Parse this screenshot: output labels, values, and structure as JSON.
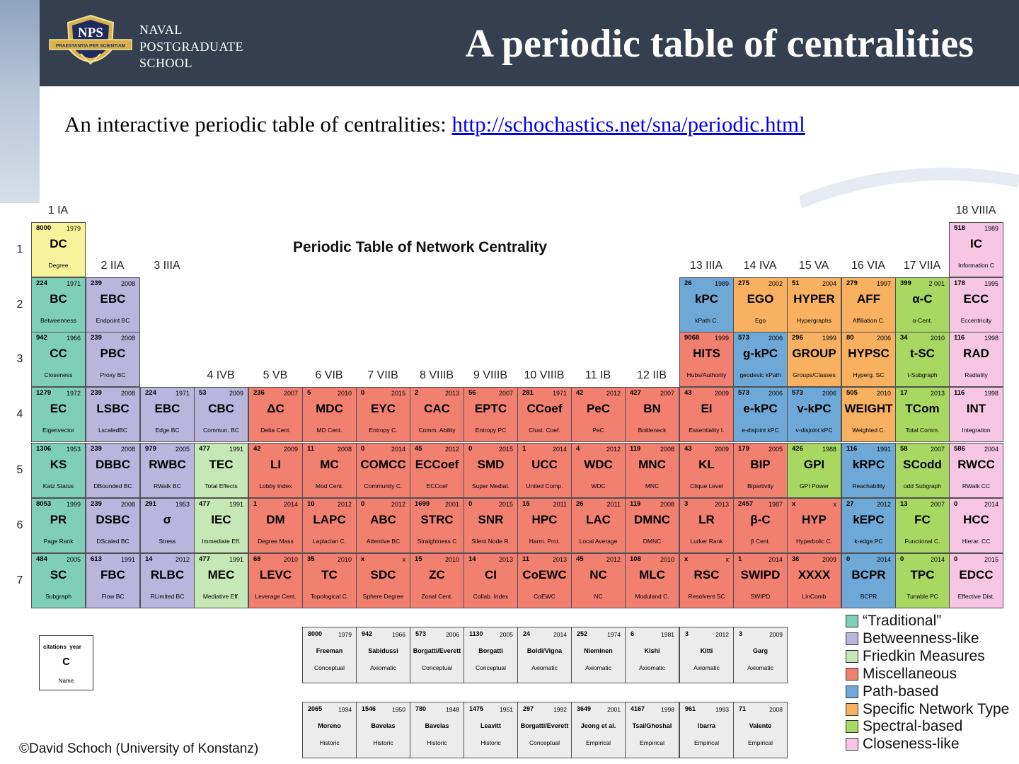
{
  "header": {
    "school_lines": [
      "NAVAL",
      "POSTGRADUATE",
      "SCHOOL"
    ],
    "seal_text": "NPS",
    "seal_motto": "PRAESTANTIA PER SCIENTIAM",
    "title": "A periodic table of centralities"
  },
  "intro": {
    "text": "An interactive periodic table of centralities: ",
    "link": "http://schochastics.net/sna/periodic.html"
  },
  "table": {
    "title": "Periodic Table of Network Centrality",
    "group_labels": [
      "1 IA",
      "2 IIA",
      "3 IIIA",
      "4 IVB",
      "5 VB",
      "6 VIB",
      "7 VIIB",
      "8 VIIIB",
      "9 VIIIB",
      "10 VIIIB",
      "11 IB",
      "12 IIB",
      "13 IIIA",
      "14 IVA",
      "15 VA",
      "16 VIA",
      "17 VIIA",
      "18 VIIIA"
    ],
    "period_labels": [
      "1",
      "2",
      "3",
      "4",
      "5",
      "6",
      "7"
    ],
    "colors": {
      "T": "#7fcfb8",
      "B": "#b9b5dd",
      "F": "#c5e8b6",
      "M": "#f28070",
      "P": "#6ea8d6",
      "S": "#f7b160",
      "SP": "#a8d862",
      "C": "#f6c6e2"
    },
    "cells": [
      {
        "col": 1,
        "row": 1,
        "cit": "8000",
        "yr": "1979",
        "sym": "DC",
        "name": "Degree",
        "cat": "Y"
      },
      {
        "col": 18,
        "row": 1,
        "cit": "518",
        "yr": "1989",
        "sym": "IC",
        "name": "Information C",
        "cat": "C"
      },
      {
        "col": 1,
        "row": 2,
        "cit": "224",
        "yr": "1971",
        "sym": "BC",
        "name": "Betweenness",
        "cat": "T"
      },
      {
        "col": 2,
        "row": 2,
        "cit": "239",
        "yr": "2008",
        "sym": "EBC",
        "name": "Endpoint BC",
        "cat": "B"
      },
      {
        "col": 13,
        "row": 2,
        "cit": "26",
        "yr": "1989",
        "sym": "kPC",
        "name": "kPath C.",
        "cat": "P"
      },
      {
        "col": 14,
        "row": 2,
        "cit": "275",
        "yr": "2002",
        "sym": "EGO",
        "name": "Ego",
        "cat": "S"
      },
      {
        "col": 15,
        "row": 2,
        "cit": "51",
        "yr": "2004",
        "sym": "HYPER",
        "name": "Hypergraphs",
        "cat": "S"
      },
      {
        "col": 16,
        "row": 2,
        "cit": "279",
        "yr": "1997",
        "sym": "AFF",
        "name": "Affiliation C.",
        "cat": "S"
      },
      {
        "col": 17,
        "row": 2,
        "cit": "399",
        "yr": "2 001",
        "sym": "α-C",
        "name": "α-Cent.",
        "cat": "SP"
      },
      {
        "col": 18,
        "row": 2,
        "cit": "178",
        "yr": "1995",
        "sym": "ECC",
        "name": "Eccentricity",
        "cat": "C"
      },
      {
        "col": 1,
        "row": 3,
        "cit": "942",
        "yr": "1966",
        "sym": "CC",
        "name": "Closeness",
        "cat": "T"
      },
      {
        "col": 2,
        "row": 3,
        "cit": "239",
        "yr": "2008",
        "sym": "PBC",
        "name": "Proxy BC",
        "cat": "B"
      },
      {
        "col": 13,
        "row": 3,
        "cit": "9068",
        "yr": "1999",
        "sym": "HITS",
        "name": "Hubs/Authority",
        "cat": "M"
      },
      {
        "col": 14,
        "row": 3,
        "cit": "573",
        "yr": "2006",
        "sym": "g-kPC",
        "name": "geodesic kPath",
        "cat": "P"
      },
      {
        "col": 15,
        "row": 3,
        "cit": "296",
        "yr": "1999",
        "sym": "GROUP",
        "name": "Groups/Classes",
        "cat": "S"
      },
      {
        "col": 16,
        "row": 3,
        "cit": "80",
        "yr": "2006",
        "sym": "HYPSC",
        "name": "Hyperg. SC",
        "cat": "S"
      },
      {
        "col": 17,
        "row": 3,
        "cit": "34",
        "yr": "2010",
        "sym": "t-SC",
        "name": "t-Subgraph",
        "cat": "SP"
      },
      {
        "col": 18,
        "row": 3,
        "cit": "116",
        "yr": "1998",
        "sym": "RAD",
        "name": "Radiality",
        "cat": "C"
      },
      {
        "col": 1,
        "row": 4,
        "cit": "1279",
        "yr": "1972",
        "sym": "EC",
        "name": "Eigenvector",
        "cat": "T"
      },
      {
        "col": 2,
        "row": 4,
        "cit": "239",
        "yr": "2008",
        "sym": "LSBC",
        "name": "LscaledBC",
        "cat": "B"
      },
      {
        "col": 3,
        "row": 4,
        "cit": "224",
        "yr": "1971",
        "sym": "EBC",
        "name": "Edge BC",
        "cat": "B"
      },
      {
        "col": 4,
        "row": 4,
        "cit": "53",
        "yr": "2009",
        "sym": "CBC",
        "name": "Commun. BC",
        "cat": "B"
      },
      {
        "col": 5,
        "row": 4,
        "cit": "236",
        "yr": "2007",
        "sym": "ΔC",
        "name": "Delta Cent.",
        "cat": "M"
      },
      {
        "col": 6,
        "row": 4,
        "cit": "5",
        "yr": "2010",
        "sym": "MDC",
        "name": "MD Cent.",
        "cat": "M"
      },
      {
        "col": 7,
        "row": 4,
        "cit": "0",
        "yr": "2015",
        "sym": "EYC",
        "name": "Entropy C.",
        "cat": "M"
      },
      {
        "col": 8,
        "row": 4,
        "cit": "2",
        "yr": "2013",
        "sym": "CAC",
        "name": "Comm. Ability",
        "cat": "M"
      },
      {
        "col": 9,
        "row": 4,
        "cit": "56",
        "yr": "2007",
        "sym": "EPTC",
        "name": "Entropy PC",
        "cat": "M"
      },
      {
        "col": 10,
        "row": 4,
        "cit": "281",
        "yr": "1971",
        "sym": "CCoef",
        "name": "Clust. Coef.",
        "cat": "M"
      },
      {
        "col": 11,
        "row": 4,
        "cit": "42",
        "yr": "2012",
        "sym": "PeC",
        "name": "PeC",
        "cat": "M"
      },
      {
        "col": 12,
        "row": 4,
        "cit": "427",
        "yr": "2007",
        "sym": "BN",
        "name": "Bottleneck",
        "cat": "M"
      },
      {
        "col": 13,
        "row": 4,
        "cit": "43",
        "yr": "2009",
        "sym": "EI",
        "name": "Essentiality I.",
        "cat": "M"
      },
      {
        "col": 14,
        "row": 4,
        "cit": "573",
        "yr": "2006",
        "sym": "e-kPC",
        "name": "e-disjoint kPC",
        "cat": "P"
      },
      {
        "col": 15,
        "row": 4,
        "cit": "573",
        "yr": "2006",
        "sym": "v-kPC",
        "name": "v-disjoint kPC",
        "cat": "P"
      },
      {
        "col": 16,
        "row": 4,
        "cit": "505",
        "yr": "2010",
        "sym": "WEIGHT",
        "name": "Weighted C.",
        "cat": "S"
      },
      {
        "col": 17,
        "row": 4,
        "cit": "17",
        "yr": "2013",
        "sym": "TCom",
        "name": "Total Comm.",
        "cat": "SP"
      },
      {
        "col": 18,
        "row": 4,
        "cit": "116",
        "yr": "1998",
        "sym": "INT",
        "name": "Integration",
        "cat": "C"
      },
      {
        "col": 1,
        "row": 5,
        "cit": "1306",
        "yr": "1953",
        "sym": "KS",
        "name": "Katz Status",
        "cat": "T"
      },
      {
        "col": 2,
        "row": 5,
        "cit": "239",
        "yr": "2008",
        "sym": "DBBC",
        "name": "DBounded BC",
        "cat": "B"
      },
      {
        "col": 3,
        "row": 5,
        "cit": "979",
        "yr": "2005",
        "sym": "RWBC",
        "name": "RWalk BC",
        "cat": "B"
      },
      {
        "col": 4,
        "row": 5,
        "cit": "477",
        "yr": "1991",
        "sym": "TEC",
        "name": "Total Effects",
        "cat": "F"
      },
      {
        "col": 5,
        "row": 5,
        "cit": "42",
        "yr": "2009",
        "sym": "LI",
        "name": "Lobby Index",
        "cat": "M"
      },
      {
        "col": 6,
        "row": 5,
        "cit": "11",
        "yr": "2008",
        "sym": "MC",
        "name": "Mod Cent.",
        "cat": "M"
      },
      {
        "col": 7,
        "row": 5,
        "cit": "0",
        "yr": "2014",
        "sym": "COMCC",
        "name": "Community C.",
        "cat": "M"
      },
      {
        "col": 8,
        "row": 5,
        "cit": "45",
        "yr": "2012",
        "sym": "ECCoef",
        "name": "ECCoef",
        "cat": "M"
      },
      {
        "col": 9,
        "row": 5,
        "cit": "0",
        "yr": "2015",
        "sym": "SMD",
        "name": "Super Mediat.",
        "cat": "M"
      },
      {
        "col": 10,
        "row": 5,
        "cit": "1",
        "yr": "2014",
        "sym": "UCC",
        "name": "United Comp.",
        "cat": "M"
      },
      {
        "col": 11,
        "row": 5,
        "cit": "4",
        "yr": "2012",
        "sym": "WDC",
        "name": "WDC",
        "cat": "M"
      },
      {
        "col": 12,
        "row": 5,
        "cit": "119",
        "yr": "2008",
        "sym": "MNC",
        "name": "MNC",
        "cat": "M"
      },
      {
        "col": 13,
        "row": 5,
        "cit": "43",
        "yr": "2009",
        "sym": "KL",
        "name": "Clique Level",
        "cat": "M"
      },
      {
        "col": 14,
        "row": 5,
        "cit": "179",
        "yr": "2005",
        "sym": "BIP",
        "name": "Bipartivity",
        "cat": "M"
      },
      {
        "col": 15,
        "row": 5,
        "cit": "426",
        "yr": "1988",
        "sym": "GPI",
        "name": "GPI Power",
        "cat": "SP"
      },
      {
        "col": 16,
        "row": 5,
        "cit": "116",
        "yr": "1991",
        "sym": "kRPC",
        "name": "Reachability",
        "cat": "P"
      },
      {
        "col": 17,
        "row": 5,
        "cit": "58",
        "yr": "2007",
        "sym": "SCodd",
        "name": "odd Subgraph",
        "cat": "SP"
      },
      {
        "col": 18,
        "row": 5,
        "cit": "586",
        "yr": "2004",
        "sym": "RWCC",
        "name": "RWalk CC",
        "cat": "C"
      },
      {
        "col": 1,
        "row": 6,
        "cit": "8053",
        "yr": "1999",
        "sym": "PR",
        "name": "Page Rank",
        "cat": "T"
      },
      {
        "col": 2,
        "row": 6,
        "cit": "239",
        "yr": "2008",
        "sym": "DSBC",
        "name": "DScaled BC",
        "cat": "B"
      },
      {
        "col": 3,
        "row": 6,
        "cit": "291",
        "yr": "1953",
        "sym": "σ",
        "name": "Stress",
        "cat": "B"
      },
      {
        "col": 4,
        "row": 6,
        "cit": "477",
        "yr": "1991",
        "sym": "IEC",
        "name": "Immediate Eff.",
        "cat": "F"
      },
      {
        "col": 5,
        "row": 6,
        "cit": "1",
        "yr": "2014",
        "sym": "DM",
        "name": "Degree Mass",
        "cat": "M"
      },
      {
        "col": 6,
        "row": 6,
        "cit": "10",
        "yr": "2012",
        "sym": "LAPC",
        "name": "Laplacian C.",
        "cat": "M"
      },
      {
        "col": 7,
        "row": 6,
        "cit": "0",
        "yr": "2012",
        "sym": "ABC",
        "name": "Attentive BC",
        "cat": "M"
      },
      {
        "col": 8,
        "row": 6,
        "cit": "1699",
        "yr": "2001",
        "sym": "STRC",
        "name": "Straightness C",
        "cat": "M"
      },
      {
        "col": 9,
        "row": 6,
        "cit": "0",
        "yr": "2015",
        "sym": "SNR",
        "name": "Silent Node R.",
        "cat": "M"
      },
      {
        "col": 10,
        "row": 6,
        "cit": "15",
        "yr": "2011",
        "sym": "HPC",
        "name": "Harm. Prot.",
        "cat": "M"
      },
      {
        "col": 11,
        "row": 6,
        "cit": "26",
        "yr": "2011",
        "sym": "LAC",
        "name": "Local Average",
        "cat": "M"
      },
      {
        "col": 12,
        "row": 6,
        "cit": "119",
        "yr": "2008",
        "sym": "DMNC",
        "name": "DMNC",
        "cat": "M"
      },
      {
        "col": 13,
        "row": 6,
        "cit": "3",
        "yr": "2013",
        "sym": "LR",
        "name": "Lurker Rank",
        "cat": "M"
      },
      {
        "col": 14,
        "row": 6,
        "cit": "2457",
        "yr": "1987",
        "sym": "β-C",
        "name": "β Cent.",
        "cat": "M"
      },
      {
        "col": 15,
        "row": 6,
        "cit": "x",
        "yr": "x",
        "sym": "HYP",
        "name": "Hyperbolic C.",
        "cat": "M"
      },
      {
        "col": 16,
        "row": 6,
        "cit": "27",
        "yr": "2012",
        "sym": "kEPC",
        "name": "k-edge PC",
        "cat": "P"
      },
      {
        "col": 17,
        "row": 6,
        "cit": "13",
        "yr": "2007",
        "sym": "FC",
        "name": "Functional C.",
        "cat": "SP"
      },
      {
        "col": 18,
        "row": 6,
        "cit": "0",
        "yr": "2014",
        "sym": "HCC",
        "name": "Hierar. CC",
        "cat": "C"
      },
      {
        "col": 1,
        "row": 7,
        "cit": "484",
        "yr": "2005",
        "sym": "SC",
        "name": "Subgraph",
        "cat": "T"
      },
      {
        "col": 2,
        "row": 7,
        "cit": "613",
        "yr": "1991",
        "sym": "FBC",
        "name": "Flow BC",
        "cat": "B"
      },
      {
        "col": 3,
        "row": 7,
        "cit": "14",
        "yr": "2012",
        "sym": "RLBC",
        "name": "RLimited BC",
        "cat": "B"
      },
      {
        "col": 4,
        "row": 7,
        "cit": "477",
        "yr": "1991",
        "sym": "MEC",
        "name": "Mediative Eff.",
        "cat": "F"
      },
      {
        "col": 5,
        "row": 7,
        "cit": "69",
        "yr": "2010",
        "sym": "LEVC",
        "name": "Leverage Cent.",
        "cat": "M"
      },
      {
        "col": 6,
        "row": 7,
        "cit": "35",
        "yr": "2010",
        "sym": "TC",
        "name": "Topological C.",
        "cat": "M"
      },
      {
        "col": 7,
        "row": 7,
        "cit": "x",
        "yr": "x",
        "sym": "SDC",
        "name": "Sphere Degree",
        "cat": "M"
      },
      {
        "col": 8,
        "row": 7,
        "cit": "15",
        "yr": "2010",
        "sym": "ZC",
        "name": "Zonal Cent.",
        "cat": "M"
      },
      {
        "col": 9,
        "row": 7,
        "cit": "14",
        "yr": "2013",
        "sym": "CI",
        "name": "Collab. Index",
        "cat": "M"
      },
      {
        "col": 10,
        "row": 7,
        "cit": "11",
        "yr": "2013",
        "sym": "CoEWC",
        "name": "CoEWC",
        "cat": "M"
      },
      {
        "col": 11,
        "row": 7,
        "cit": "45",
        "yr": "2012",
        "sym": "NC",
        "name": "NC",
        "cat": "M"
      },
      {
        "col": 12,
        "row": 7,
        "cit": "108",
        "yr": "2010",
        "sym": "MLC",
        "name": "Moduland C.",
        "cat": "M"
      },
      {
        "col": 13,
        "row": 7,
        "cit": "x",
        "yr": "x",
        "sym": "RSC",
        "name": "Resolvent SC",
        "cat": "M"
      },
      {
        "col": 14,
        "row": 7,
        "cit": "1",
        "yr": "2014",
        "sym": "SWIPD",
        "name": "SWIPD",
        "cat": "M"
      },
      {
        "col": 15,
        "row": 7,
        "cit": "36",
        "yr": "2009",
        "sym": "XXXX",
        "name": "LinComb",
        "cat": "M"
      },
      {
        "col": 16,
        "row": 7,
        "cit": "0",
        "yr": "2014",
        "sym": "BCPR",
        "name": "BCPR",
        "cat": "P"
      },
      {
        "col": 17,
        "row": 7,
        "cit": "0",
        "yr": "2014",
        "sym": "TPC",
        "name": "Tunable PC",
        "cat": "SP"
      },
      {
        "col": 18,
        "row": 7,
        "cit": "0",
        "yr": "2015",
        "sym": "EDCC",
        "name": "Effective Dist.",
        "cat": "C"
      }
    ],
    "yellow": "#f8f39a",
    "key": {
      "citations": "citations",
      "year": "year",
      "symbol": "C",
      "name": "Name"
    },
    "axiom_row1": [
      {
        "cit": "8000",
        "yr": "1979",
        "auth": "Freeman",
        "kind": "Conceptual"
      },
      {
        "cit": "942",
        "yr": "1966",
        "auth": "Sabidussi",
        "kind": "Axiomatic"
      },
      {
        "cit": "573",
        "yr": "2006",
        "auth": "Borgatti/Everett",
        "kind": "Conceptual"
      },
      {
        "cit": "1130",
        "yr": "2005",
        "auth": "Borgatti",
        "kind": "Conceptual"
      },
      {
        "cit": "24",
        "yr": "2014",
        "auth": "Boldi/Vigna",
        "kind": "Axiomatic"
      },
      {
        "cit": "252",
        "yr": "1974",
        "auth": "Nieminen",
        "kind": "Axiomatic"
      },
      {
        "cit": "6",
        "yr": "1981",
        "auth": "Kishi",
        "kind": "Axiomatic"
      },
      {
        "cit": "3",
        "yr": "2012",
        "auth": "Kitti",
        "kind": "Axiomatic"
      },
      {
        "cit": "3",
        "yr": "2009",
        "auth": "Garg",
        "kind": "Axiomatic"
      }
    ],
    "axiom_row2": [
      {
        "cit": "2065",
        "yr": "1934",
        "auth": "Moreno",
        "kind": "Historic"
      },
      {
        "cit": "1546",
        "yr": "1950",
        "auth": "Bavelas",
        "kind": "Historic"
      },
      {
        "cit": "780",
        "yr": "1948",
        "auth": "Bavelas",
        "kind": "Historic"
      },
      {
        "cit": "1475",
        "yr": "1951",
        "auth": "Leavitt",
        "kind": "Historic"
      },
      {
        "cit": "297",
        "yr": "1992",
        "auth": "Borgatti/Everett",
        "kind": "Conceptual"
      },
      {
        "cit": "3649",
        "yr": "2001",
        "auth": "Jeong et al.",
        "kind": "Empirical"
      },
      {
        "cit": "4167",
        "yr": "1998",
        "auth": "Tsai/Ghoshal",
        "kind": "Empirical"
      },
      {
        "cit": "961",
        "yr": "1993",
        "auth": "Ibarra",
        "kind": "Empirical"
      },
      {
        "cit": "71",
        "yr": "2008",
        "auth": "Valente",
        "kind": "Empirical"
      }
    ],
    "legend": [
      {
        "label": "“Traditional”",
        "cat": "T"
      },
      {
        "label": "Betweenness-like",
        "cat": "B"
      },
      {
        "label": "Friedkin Measures",
        "cat": "F"
      },
      {
        "label": "Miscellaneous",
        "cat": "M"
      },
      {
        "label": "Path-based",
        "cat": "P"
      },
      {
        "label": "Specific Network Type",
        "cat": "S"
      },
      {
        "label": "Spectral-based",
        "cat": "SP"
      },
      {
        "label": "Closeness-like",
        "cat": "C"
      }
    ]
  },
  "credit": "©David Schoch (University of Konstanz)"
}
